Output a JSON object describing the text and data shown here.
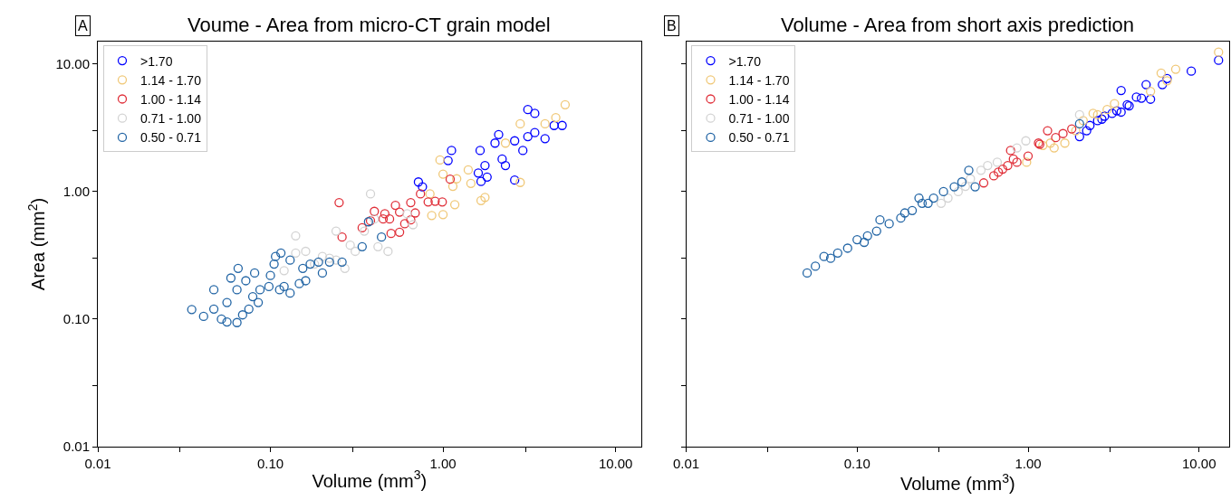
{
  "chart_data": [
    {
      "type": "scatter",
      "title": "Voume - Area from micro-CT grain model",
      "xlabel": "Volume (mm$^{3}$)",
      "ylabel": "Area (mm$^{2}$)",
      "annotations": [
        "A"
      ],
      "log": "xy",
      "marker": "circle",
      "legend": "top left",
      "grid": false,
      "xlim": [
        0.01,
        14
      ],
      "ylim": [
        0.01,
        15
      ],
      "xticks": [
        0.01,
        {
          "value": 0.03,
          "label": null
        },
        {
          "value": 0.1,
          "label": "0.10"
        },
        {
          "value": 0.3,
          "label": null
        },
        {
          "value": 1,
          "label": "1.00"
        },
        {
          "value": 3,
          "label": null
        },
        {
          "value": 10,
          "label": "10.00"
        }
      ],
      "yticks": [
        0.01,
        {
          "value": 0.03,
          "label": null
        },
        {
          "value": 0.1,
          "label": "0.10"
        },
        {
          "value": 0.3,
          "label": null
        },
        {
          "value": 1,
          "label": "1.00"
        },
        {
          "value": 3,
          "label": null
        },
        {
          "value": 10,
          "label": "10.00"
        }
      ],
      "series": [
        {
          "name": ">1.70",
          "color": "#0000ff",
          "x": [
            3.1,
            3.4,
            4.4,
            4.9,
            3.9,
            3.1,
            3.4,
            2.9,
            2.6,
            2.6,
            2.1,
            2.0,
            1.64,
            1.12,
            1.07,
            0.72,
            0.76,
            1.66,
            1.8,
            1.75,
            2.2,
            2.3,
            1.6
          ],
          "values": [
            4.4,
            4.1,
            3.3,
            3.3,
            2.6,
            2.7,
            2.9,
            2.1,
            2.5,
            1.23,
            2.8,
            2.4,
            2.1,
            2.1,
            1.75,
            1.19,
            1.09,
            1.2,
            1.3,
            1.6,
            1.8,
            1.6,
            1.4
          ]
        },
        {
          "name": "1.14 - 1.70",
          "color": "#f0c878",
          "x": [
            5.1,
            4.5,
            3.9,
            2.8,
            2.3,
            1.75,
            1.66,
            0.96,
            1.0,
            1.14,
            1.17,
            1.0,
            0.86,
            1.45,
            1.4,
            1.2,
            0.84,
            2.8
          ],
          "values": [
            4.8,
            3.8,
            3.4,
            3.4,
            2.4,
            0.9,
            0.85,
            1.77,
            1.37,
            1.1,
            0.79,
            0.66,
            0.65,
            1.16,
            1.48,
            1.26,
            0.96,
            1.18
          ]
        },
        {
          "name": "1.00 - 1.14",
          "color": "#e0303a",
          "x": [
            0.25,
            0.26,
            0.4,
            1.1,
            0.99,
            0.9,
            0.82,
            0.74,
            0.65,
            0.53,
            0.56,
            0.49,
            0.56,
            0.5,
            0.45,
            0.6,
            0.65,
            0.69,
            0.34,
            0.38,
            0.46
          ],
          "values": [
            0.82,
            0.44,
            0.7,
            1.25,
            0.83,
            0.84,
            0.83,
            0.96,
            0.82,
            0.78,
            0.69,
            0.61,
            0.48,
            0.47,
            0.61,
            0.56,
            0.6,
            0.68,
            0.52,
            0.59,
            0.67
          ]
        },
        {
          "name": "0.71 - 1.00",
          "color": "#d3d3d3",
          "x": [
            0.14,
            0.38,
            0.24,
            0.35,
            0.29,
            0.27,
            0.24,
            0.2,
            0.16,
            0.14,
            0.12,
            0.18,
            0.42,
            0.48,
            0.62,
            0.31,
            0.4,
            0.67,
            0.22
          ],
          "values": [
            0.45,
            0.96,
            0.49,
            0.49,
            0.38,
            0.25,
            0.29,
            0.31,
            0.34,
            0.33,
            0.24,
            0.27,
            0.37,
            0.34,
            0.67,
            0.34,
            0.61,
            0.55,
            0.3
          ]
        },
        {
          "name": "0.50 - 0.71",
          "color": "#2265a5",
          "x": [
            0.035,
            0.041,
            0.047,
            0.047,
            0.052,
            0.056,
            0.064,
            0.059,
            0.065,
            0.081,
            0.072,
            0.064,
            0.069,
            0.075,
            0.085,
            0.087,
            0.098,
            0.1,
            0.107,
            0.115,
            0.105,
            0.113,
            0.12,
            0.13,
            0.13,
            0.147,
            0.16,
            0.17,
            0.19,
            0.2,
            0.22,
            0.26,
            0.34,
            0.44,
            0.056,
            0.079,
            0.154,
            0.37
          ],
          "values": [
            0.119,
            0.105,
            0.12,
            0.17,
            0.1,
            0.095,
            0.094,
            0.21,
            0.25,
            0.23,
            0.2,
            0.17,
            0.108,
            0.12,
            0.135,
            0.17,
            0.18,
            0.22,
            0.31,
            0.33,
            0.27,
            0.17,
            0.18,
            0.16,
            0.29,
            0.19,
            0.2,
            0.27,
            0.28,
            0.23,
            0.28,
            0.28,
            0.37,
            0.44,
            0.135,
            0.15,
            0.25,
            0.58
          ]
        }
      ]
    },
    {
      "type": "scatter",
      "title": "Volume - Area from short axis prediction",
      "xlabel": "Volume (mm$^{3}$)",
      "annotations": [
        "B"
      ],
      "log": "xy",
      "marker": "circle",
      "legend": "top left",
      "grid": false,
      "tick_labels": "x",
      "xlim": [
        0.01,
        15
      ],
      "ylim": [
        0.01,
        15
      ],
      "xticks": [
        0.01,
        {
          "value": 0.03,
          "label": null
        },
        {
          "value": 0.1,
          "label": "0.10"
        },
        {
          "value": 0.3,
          "label": null
        },
        {
          "value": 1,
          "label": "1.00"
        },
        {
          "value": 3,
          "label": null
        },
        {
          "value": 10,
          "label": "10.00"
        }
      ],
      "yticks": [
        {
          "value": 0.01,
          "label": null
        },
        {
          "value": 0.03,
          "label": null
        },
        {
          "value": 0.1,
          "label": null
        },
        {
          "value": 0.3,
          "label": null
        },
        {
          "value": 1,
          "label": null
        },
        {
          "value": 3,
          "label": null
        },
        {
          "value": 10,
          "label": null
        }
      ],
      "series": [
        {
          "name": ">1.70",
          "color": "#0000ff",
          "x": [
            13,
            9.0,
            6.5,
            6.1,
            4.9,
            3.5,
            5.2,
            4.6,
            4.3,
            3.8,
            3.5,
            3.1,
            2.8,
            2.55,
            2.3,
            2.0,
            2.2,
            2.7,
            3.3,
            3.9
          ],
          "values": [
            10.7,
            8.8,
            7.7,
            6.9,
            6.9,
            6.2,
            5.3,
            5.4,
            5.5,
            4.8,
            4.2,
            4.1,
            3.9,
            3.6,
            3.3,
            2.7,
            3.0,
            3.7,
            4.3,
            4.7
          ]
        },
        {
          "name": "1.14 - 1.70",
          "color": "#f0c878",
          "x": [
            13,
            7.3,
            6.0,
            6.5,
            5.2,
            3.2,
            2.9,
            2.4,
            2.1,
            1.64,
            1.42,
            1.35,
            1.22,
            0.98,
            1.9,
            2.55
          ],
          "values": [
            12.4,
            9.1,
            8.5,
            7.4,
            6.1,
            4.9,
            4.4,
            4.1,
            3.6,
            2.4,
            2.2,
            2.4,
            2.3,
            1.7,
            3.0,
            4.0
          ]
        },
        {
          "name": "1.00 - 1.14",
          "color": "#e0303a",
          "x": [
            1.3,
            1.6,
            1.8,
            1.17,
            0.79,
            1.0,
            0.86,
            0.76,
            0.67,
            0.63,
            0.55,
            1.15,
            1.45,
            0.82,
            0.71
          ],
          "values": [
            3.0,
            2.85,
            3.1,
            2.35,
            2.1,
            1.9,
            1.7,
            1.6,
            1.42,
            1.33,
            1.17,
            2.4,
            2.65,
            1.8,
            1.5
          ]
        },
        {
          "name": "0.71 - 1.00",
          "color": "#d3d3d3",
          "x": [
            2.0,
            0.97,
            0.58,
            0.53,
            0.46,
            0.39,
            0.34,
            0.31,
            0.66,
            0.86,
            0.43
          ],
          "values": [
            4.0,
            2.5,
            1.6,
            1.47,
            1.26,
            1.0,
            0.89,
            0.81,
            1.7,
            2.2,
            1.1
          ]
        },
        {
          "name": "0.50 - 0.71",
          "color": "#2265a5",
          "x": [
            0.051,
            0.057,
            0.064,
            0.07,
            0.077,
            0.088,
            0.1,
            0.115,
            0.13,
            0.154,
            0.18,
            0.21,
            0.24,
            0.28,
            0.32,
            0.37,
            0.41,
            0.45,
            0.49,
            0.136,
            0.11,
            0.19,
            0.23,
            0.26,
            2.0
          ],
          "values": [
            0.23,
            0.26,
            0.31,
            0.3,
            0.33,
            0.36,
            0.42,
            0.45,
            0.49,
            0.56,
            0.62,
            0.71,
            0.81,
            0.89,
            1.0,
            1.09,
            1.19,
            1.47,
            1.09,
            0.6,
            0.4,
            0.68,
            0.89,
            0.81,
            3.4
          ]
        }
      ]
    }
  ]
}
